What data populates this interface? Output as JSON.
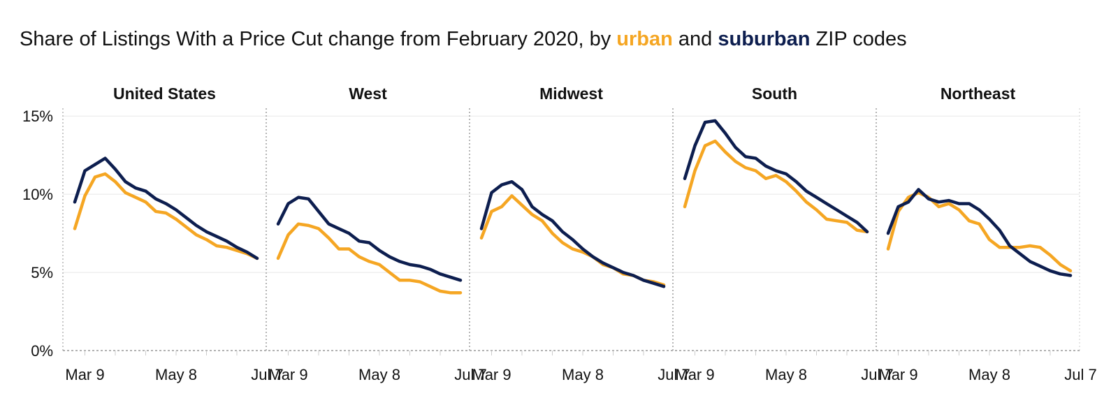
{
  "title": {
    "prefix": "Share of Listings With a Price Cut change from February 2020, by ",
    "urban": "urban",
    "middle": " and ",
    "suburban": "suburban",
    "suffix": " ZIP codes"
  },
  "colors": {
    "urban": "#f5a623",
    "suburban": "#0d1e4f",
    "grid": "#e8e8e8",
    "separator": "#b5b5b5"
  },
  "chart_data": {
    "type": "line",
    "ylim": [
      0,
      15.5
    ],
    "yticks": [
      {
        "v": 0,
        "label": "0%"
      },
      {
        "v": 5,
        "label": "5%"
      },
      {
        "v": 10,
        "label": "10%"
      },
      {
        "v": 15,
        "label": "15%"
      }
    ],
    "xticks": [
      {
        "i": 1,
        "label": "Mar 9"
      },
      {
        "i": 10,
        "label": "May 8"
      },
      {
        "i": 19,
        "label": "Jul 7"
      }
    ],
    "series_names": [
      "urban",
      "suburban"
    ],
    "panels": [
      {
        "title": "United States",
        "urban": [
          7.8,
          9.9,
          11.1,
          11.3,
          10.8,
          10.1,
          9.8,
          9.5,
          8.9,
          8.8,
          8.4,
          7.9,
          7.4,
          7.1,
          6.7,
          6.6,
          6.4,
          6.2,
          5.9
        ],
        "suburban": [
          9.5,
          11.5,
          11.9,
          12.3,
          11.6,
          10.8,
          10.4,
          10.2,
          9.7,
          9.4,
          9.0,
          8.5,
          8.0,
          7.6,
          7.3,
          7.0,
          6.6,
          6.3,
          5.9
        ]
      },
      {
        "title": "West",
        "urban": [
          5.9,
          7.4,
          8.1,
          8.0,
          7.8,
          7.2,
          6.5,
          6.5,
          6.0,
          5.7,
          5.5,
          5.0,
          4.5,
          4.5,
          4.4,
          4.1,
          3.8,
          3.7,
          3.7
        ],
        "suburban": [
          8.1,
          9.4,
          9.8,
          9.7,
          8.9,
          8.1,
          7.8,
          7.5,
          7.0,
          6.9,
          6.4,
          6.0,
          5.7,
          5.5,
          5.4,
          5.2,
          4.9,
          4.7,
          4.5
        ]
      },
      {
        "title": "Midwest",
        "urban": [
          7.2,
          8.9,
          9.2,
          9.9,
          9.3,
          8.7,
          8.3,
          7.5,
          6.9,
          6.5,
          6.3,
          6.0,
          5.5,
          5.3,
          4.9,
          4.8,
          4.5,
          4.4,
          4.2
        ],
        "suburban": [
          7.8,
          10.1,
          10.6,
          10.8,
          10.3,
          9.2,
          8.7,
          8.3,
          7.6,
          7.1,
          6.5,
          6.0,
          5.6,
          5.3,
          5.0,
          4.8,
          4.5,
          4.3,
          4.1
        ]
      },
      {
        "title": "South",
        "urban": [
          9.2,
          11.5,
          13.1,
          13.4,
          12.7,
          12.1,
          11.7,
          11.5,
          11.0,
          11.2,
          10.8,
          10.2,
          9.5,
          9.0,
          8.4,
          8.3,
          8.2,
          7.7,
          7.6
        ],
        "suburban": [
          11.0,
          13.1,
          14.6,
          14.7,
          13.9,
          13.0,
          12.4,
          12.3,
          11.8,
          11.5,
          11.3,
          10.8,
          10.2,
          9.8,
          9.4,
          9.0,
          8.6,
          8.2,
          7.6
        ]
      },
      {
        "title": "Northeast",
        "urban": [
          6.5,
          8.9,
          9.8,
          10.1,
          9.8,
          9.2,
          9.4,
          9.0,
          8.3,
          8.1,
          7.1,
          6.6,
          6.6,
          6.6,
          6.7,
          6.6,
          6.1,
          5.5,
          5.1
        ],
        "suburban": [
          7.5,
          9.2,
          9.5,
          10.3,
          9.7,
          9.5,
          9.6,
          9.4,
          9.4,
          9.0,
          8.4,
          7.7,
          6.7,
          6.2,
          5.7,
          5.4,
          5.1,
          4.9,
          4.8
        ]
      }
    ]
  }
}
